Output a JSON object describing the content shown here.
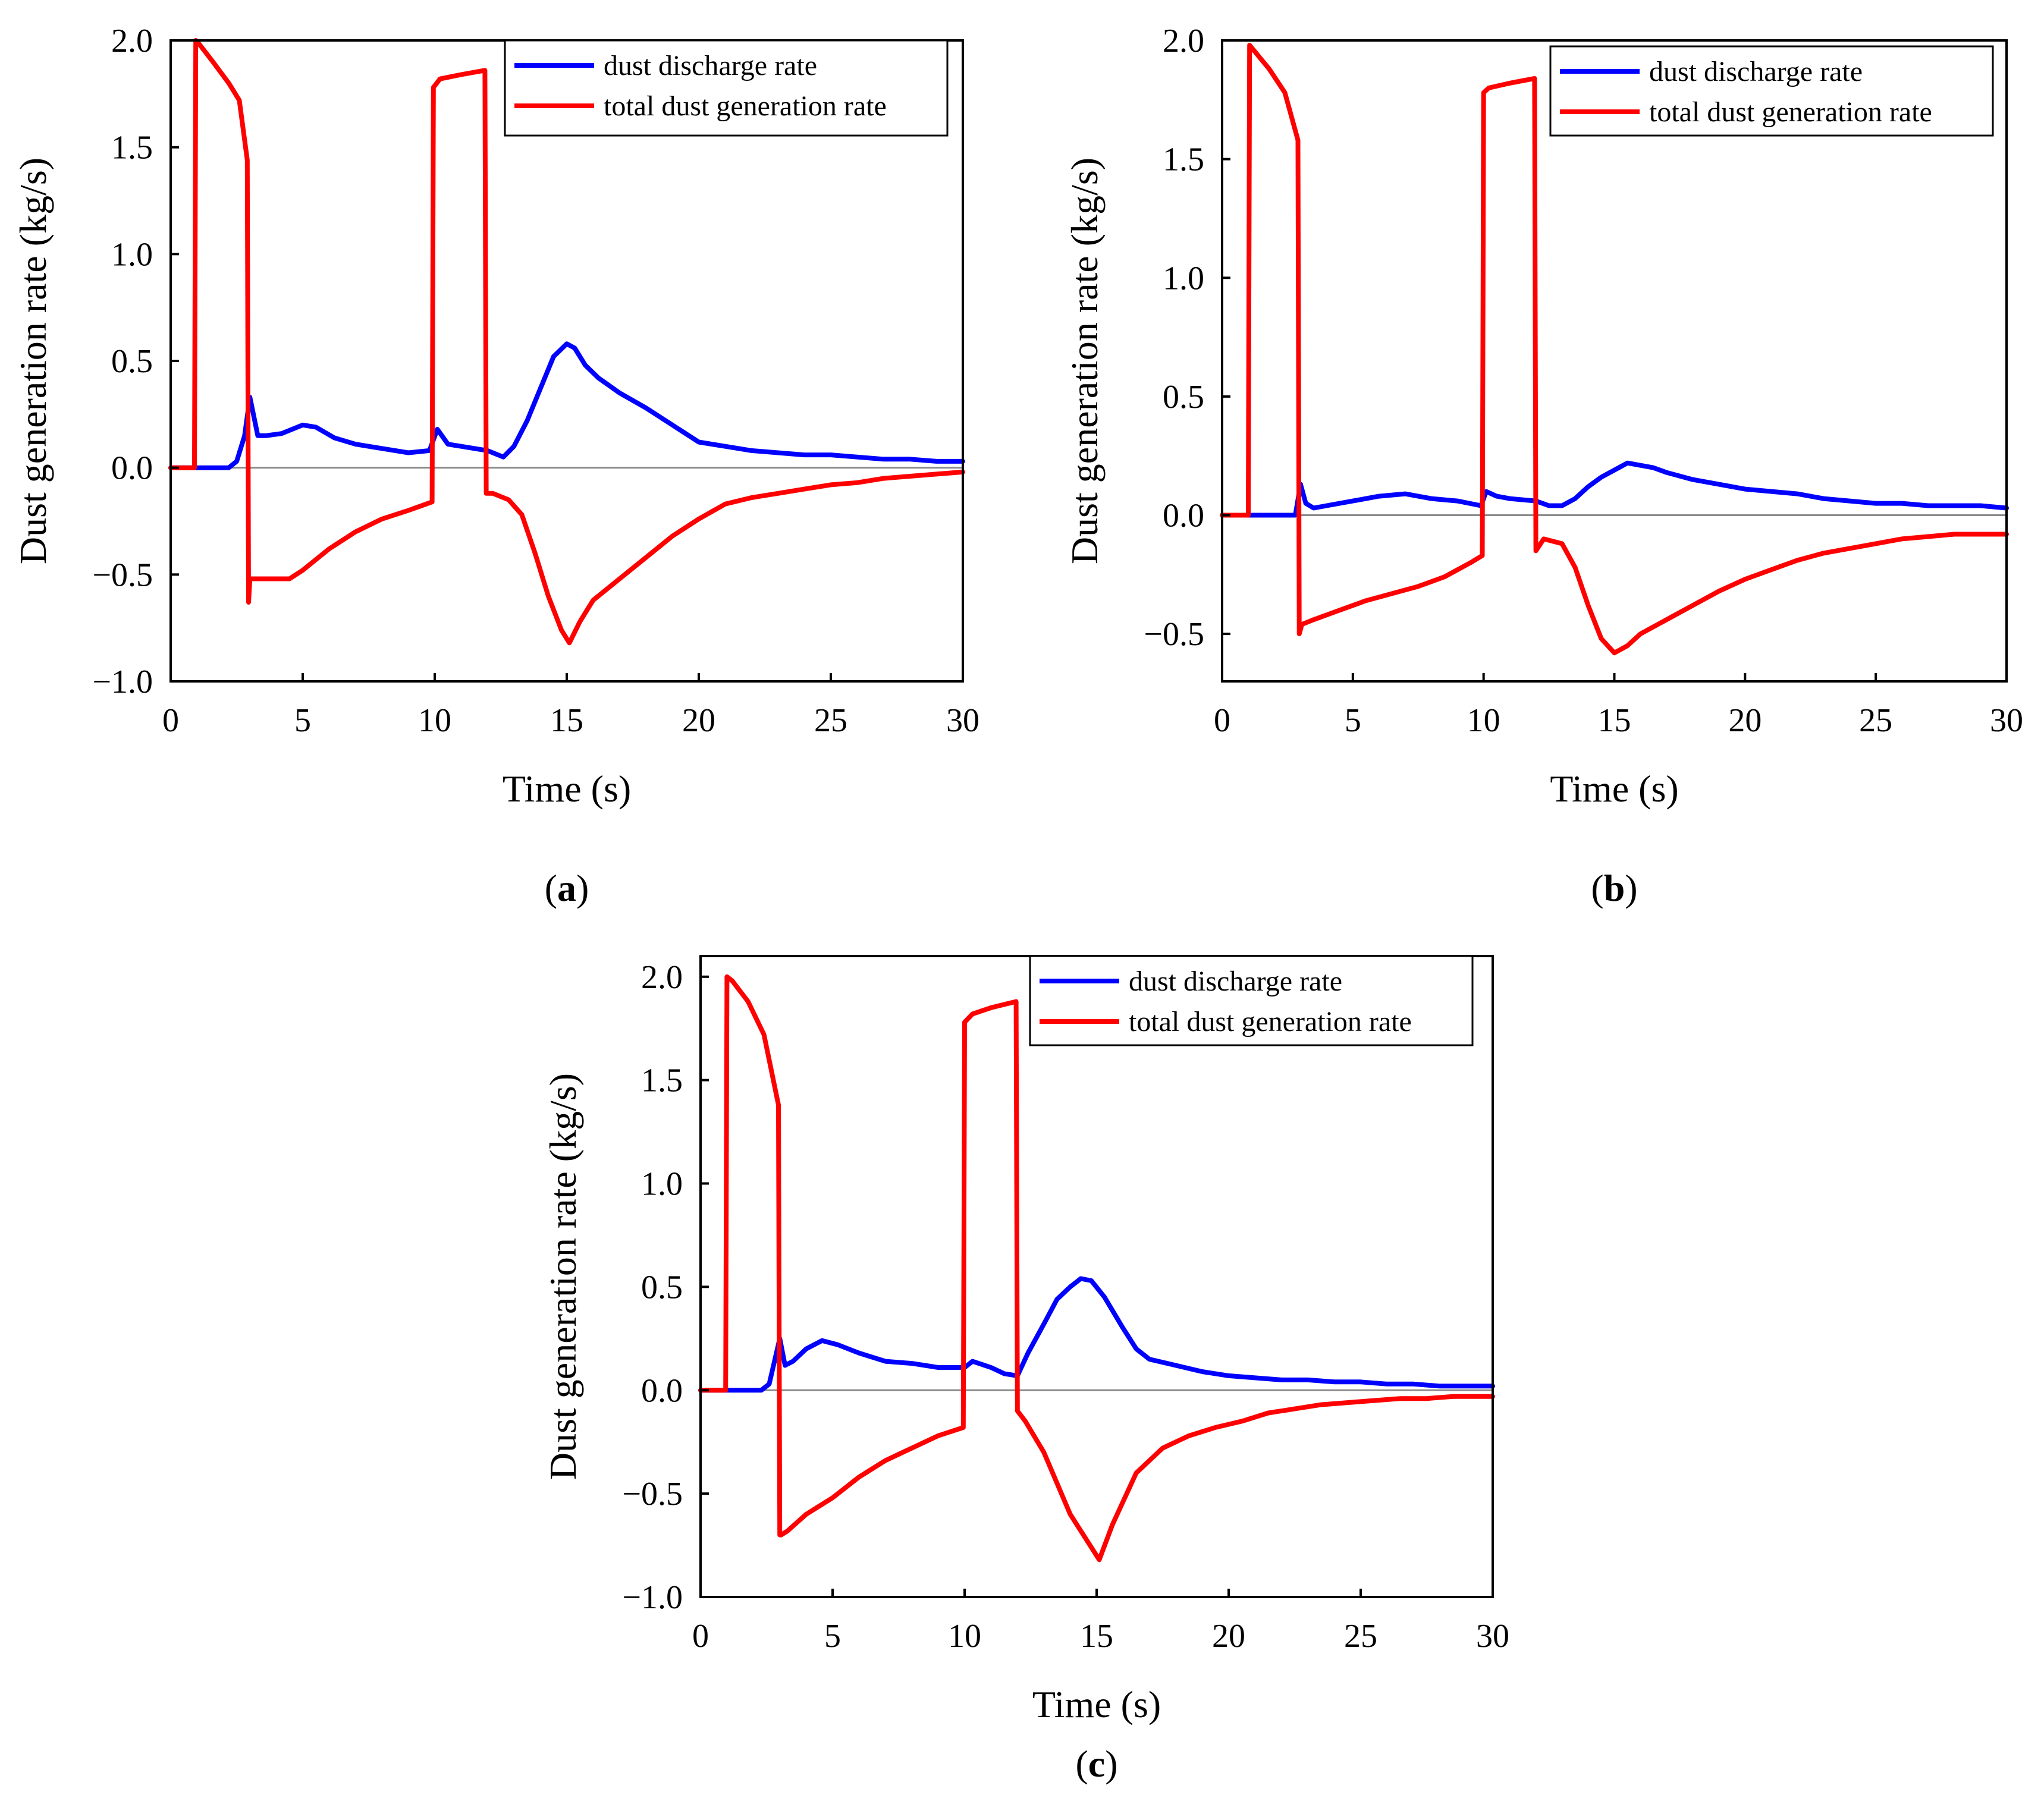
{
  "chart_data": [
    {
      "type": "line",
      "panel": "a",
      "caption_open": "(",
      "caption_letter": "a",
      "caption_close": ")",
      "xlabel": "Time (s)",
      "ylabel": "Dust generation rate (kg/s)",
      "xlim": [
        0,
        30
      ],
      "ylim": [
        -1.0,
        2.0
      ],
      "xticks": [
        0,
        5,
        10,
        15,
        20,
        25,
        30
      ],
      "xtick_labels": [
        "0",
        "5",
        "10",
        "15",
        "20",
        "25",
        "30"
      ],
      "yticks": [
        -1.0,
        -0.5,
        0.0,
        0.5,
        1.0,
        1.5,
        2.0
      ],
      "ytick_labels": [
        "−1.0",
        "−0.5",
        "0.0",
        "0.5",
        "1.0",
        "1.5",
        "2.0"
      ],
      "zero_line": true,
      "legend_position": "top-right",
      "series": [
        {
          "name": "dust discharge rate",
          "color": "#0000ff",
          "x": [
            0,
            2.2,
            2.5,
            2.8,
            3.0,
            3.3,
            3.6,
            4.2,
            5.0,
            5.5,
            6.2,
            7.0,
            8.0,
            9.0,
            9.8,
            10.1,
            10.5,
            11.0,
            11.5,
            12.0,
            12.6,
            13.0,
            13.5,
            14.0,
            14.5,
            15.0,
            15.3,
            15.7,
            16.2,
            17.0,
            18.0,
            19.0,
            20.0,
            21.0,
            22.0,
            23.0,
            24.0,
            25.0,
            26.0,
            27.0,
            28.0,
            29.0,
            30.0
          ],
          "y": [
            0.0,
            0.0,
            0.03,
            0.15,
            0.33,
            0.15,
            0.15,
            0.16,
            0.2,
            0.19,
            0.14,
            0.11,
            0.09,
            0.07,
            0.08,
            0.18,
            0.11,
            0.1,
            0.09,
            0.08,
            0.05,
            0.1,
            0.22,
            0.37,
            0.52,
            0.58,
            0.56,
            0.48,
            0.42,
            0.35,
            0.28,
            0.2,
            0.12,
            0.1,
            0.08,
            0.07,
            0.06,
            0.06,
            0.05,
            0.04,
            0.04,
            0.03,
            0.03
          ]
        },
        {
          "name": "total dust generation rate",
          "color": "#ff0000",
          "x": [
            0,
            0.9,
            0.95,
            1.1,
            1.6,
            2.2,
            2.6,
            2.9,
            2.95,
            3.0,
            3.05,
            3.3,
            3.8,
            4.5,
            5.0,
            6.0,
            7.0,
            8.0,
            9.0,
            9.9,
            9.95,
            10.2,
            11.0,
            11.9,
            11.95,
            12.2,
            12.8,
            13.3,
            13.8,
            14.3,
            14.8,
            15.1,
            15.5,
            16.0,
            17.0,
            18.0,
            19.0,
            20.0,
            21.0,
            22.0,
            23.0,
            24.0,
            25.0,
            26.0,
            27.0,
            28.0,
            29.0,
            30.0
          ],
          "y": [
            0.0,
            0.0,
            2.0,
            1.98,
            1.9,
            1.8,
            1.72,
            1.44,
            -0.63,
            -0.52,
            -0.52,
            -0.52,
            -0.52,
            -0.52,
            -0.48,
            -0.38,
            -0.3,
            -0.24,
            -0.2,
            -0.16,
            1.78,
            1.82,
            1.84,
            1.86,
            -0.12,
            -0.12,
            -0.15,
            -0.22,
            -0.4,
            -0.6,
            -0.76,
            -0.82,
            -0.72,
            -0.62,
            -0.52,
            -0.42,
            -0.32,
            -0.24,
            -0.17,
            -0.14,
            -0.12,
            -0.1,
            -0.08,
            -0.07,
            -0.05,
            -0.04,
            -0.03,
            -0.02
          ]
        }
      ]
    },
    {
      "type": "line",
      "panel": "b",
      "caption_open": "(",
      "caption_letter": "b",
      "caption_close": ")",
      "xlabel": "Time (s)",
      "ylabel": "Dust generation rate (kg/s)",
      "xlim": [
        0,
        30
      ],
      "ylim": [
        -0.7,
        2.0
      ],
      "xticks": [
        0,
        5,
        10,
        15,
        20,
        25,
        30
      ],
      "xtick_labels": [
        "0",
        "5",
        "10",
        "15",
        "20",
        "25",
        "30"
      ],
      "yticks": [
        -0.5,
        0.0,
        0.5,
        1.0,
        1.5,
        2.0
      ],
      "ytick_labels": [
        "−0.5",
        "0.0",
        "0.5",
        "1.0",
        "1.5",
        "2.0"
      ],
      "zero_line": true,
      "legend_position": "top-right",
      "series": [
        {
          "name": "dust discharge rate",
          "color": "#0000ff",
          "x": [
            0,
            2.8,
            3.0,
            3.2,
            3.5,
            4.0,
            5.0,
            6.0,
            7.0,
            8.0,
            9.0,
            9.9,
            10.1,
            10.5,
            11.0,
            12.0,
            12.5,
            13.0,
            13.5,
            14.0,
            14.5,
            15.0,
            15.5,
            16.0,
            16.5,
            17.0,
            18.0,
            19.0,
            20.0,
            21.0,
            22.0,
            23.0,
            24.0,
            25.0,
            26.0,
            27.0,
            28.0,
            29.0,
            30.0
          ],
          "y": [
            0.0,
            0.0,
            0.13,
            0.05,
            0.03,
            0.04,
            0.06,
            0.08,
            0.09,
            0.07,
            0.06,
            0.04,
            0.1,
            0.08,
            0.07,
            0.06,
            0.04,
            0.04,
            0.07,
            0.12,
            0.16,
            0.19,
            0.22,
            0.21,
            0.2,
            0.18,
            0.15,
            0.13,
            0.11,
            0.1,
            0.09,
            0.07,
            0.06,
            0.05,
            0.05,
            0.04,
            0.04,
            0.04,
            0.03
          ]
        },
        {
          "name": "total dust generation rate",
          "color": "#ff0000",
          "x": [
            0,
            1.0,
            1.05,
            1.2,
            1.8,
            2.4,
            2.9,
            2.95,
            3.0,
            3.05,
            3.5,
            4.5,
            5.5,
            6.5,
            7.5,
            8.5,
            9.5,
            9.95,
            10.0,
            10.2,
            11.0,
            11.95,
            12.0,
            12.3,
            13.0,
            13.5,
            14.0,
            14.5,
            15.0,
            15.5,
            16.0,
            17.0,
            18.0,
            19.0,
            20.0,
            21.0,
            22.0,
            23.0,
            24.0,
            25.0,
            26.0,
            27.0,
            28.0,
            29.0,
            30.0
          ],
          "y": [
            0.0,
            0.0,
            1.98,
            1.96,
            1.88,
            1.78,
            1.58,
            -0.5,
            -0.48,
            -0.46,
            -0.44,
            -0.4,
            -0.36,
            -0.33,
            -0.3,
            -0.26,
            -0.2,
            -0.17,
            1.78,
            1.8,
            1.82,
            1.84,
            -0.15,
            -0.1,
            -0.12,
            -0.22,
            -0.38,
            -0.52,
            -0.58,
            -0.55,
            -0.5,
            -0.44,
            -0.38,
            -0.32,
            -0.27,
            -0.23,
            -0.19,
            -0.16,
            -0.14,
            -0.12,
            -0.1,
            -0.09,
            -0.08,
            -0.08,
            -0.08
          ]
        }
      ]
    },
    {
      "type": "line",
      "panel": "c",
      "caption_open": "(",
      "caption_letter": "c",
      "caption_close": ")",
      "xlabel": "Time (s)",
      "ylabel": "Dust generation rate (kg/s)",
      "xlim": [
        0,
        30
      ],
      "ylim": [
        -1.0,
        2.1
      ],
      "xticks": [
        0,
        5,
        10,
        15,
        20,
        25,
        30
      ],
      "xtick_labels": [
        "0",
        "5",
        "10",
        "15",
        "20",
        "25",
        "30"
      ],
      "yticks": [
        -1.0,
        -0.5,
        0.0,
        0.5,
        1.0,
        1.5,
        2.0
      ],
      "ytick_labels": [
        "−1.0",
        "−0.5",
        "0.0",
        "0.5",
        "1.0",
        "1.5",
        "2.0"
      ],
      "zero_line": true,
      "legend_position": "top-right",
      "series": [
        {
          "name": "dust discharge rate",
          "color": "#0000ff",
          "x": [
            0,
            2.3,
            2.6,
            3.0,
            3.2,
            3.5,
            4.0,
            4.6,
            5.2,
            6.0,
            7.0,
            8.0,
            9.0,
            10.0,
            10.3,
            11.0,
            11.5,
            12.0,
            12.4,
            13.0,
            13.5,
            14.0,
            14.4,
            14.8,
            15.3,
            16.0,
            16.5,
            17.0,
            18.0,
            19.0,
            20.0,
            21.0,
            22.0,
            23.0,
            24.0,
            25.0,
            26.0,
            27.0,
            28.0,
            29.0,
            30.0
          ],
          "y": [
            0.0,
            0.0,
            0.03,
            0.25,
            0.12,
            0.14,
            0.2,
            0.24,
            0.22,
            0.18,
            0.14,
            0.13,
            0.11,
            0.11,
            0.14,
            0.11,
            0.08,
            0.07,
            0.18,
            0.32,
            0.44,
            0.5,
            0.54,
            0.53,
            0.45,
            0.3,
            0.2,
            0.15,
            0.12,
            0.09,
            0.07,
            0.06,
            0.05,
            0.05,
            0.04,
            0.04,
            0.03,
            0.03,
            0.02,
            0.02,
            0.02
          ]
        },
        {
          "name": "total dust generation rate",
          "color": "#ff0000",
          "x": [
            0,
            0.95,
            1.0,
            1.2,
            1.8,
            2.4,
            2.95,
            3.0,
            3.05,
            3.3,
            4.0,
            5.0,
            6.0,
            7.0,
            8.0,
            9.0,
            9.95,
            10.0,
            10.3,
            11.0,
            11.95,
            12.0,
            12.3,
            13.0,
            13.5,
            14.0,
            14.6,
            15.1,
            15.6,
            16.5,
            17.5,
            18.5,
            19.5,
            20.5,
            21.5,
            22.5,
            23.5,
            24.5,
            25.5,
            26.5,
            27.5,
            28.5,
            29.5,
            30.0
          ],
          "y": [
            0.0,
            0.0,
            2.0,
            1.98,
            1.88,
            1.72,
            1.38,
            -0.7,
            -0.7,
            -0.68,
            -0.6,
            -0.52,
            -0.42,
            -0.34,
            -0.28,
            -0.22,
            -0.18,
            1.78,
            1.82,
            1.85,
            1.88,
            -0.1,
            -0.15,
            -0.3,
            -0.45,
            -0.6,
            -0.72,
            -0.82,
            -0.65,
            -0.4,
            -0.28,
            -0.22,
            -0.18,
            -0.15,
            -0.11,
            -0.09,
            -0.07,
            -0.06,
            -0.05,
            -0.04,
            -0.04,
            -0.03,
            -0.03,
            -0.03
          ]
        }
      ]
    }
  ]
}
